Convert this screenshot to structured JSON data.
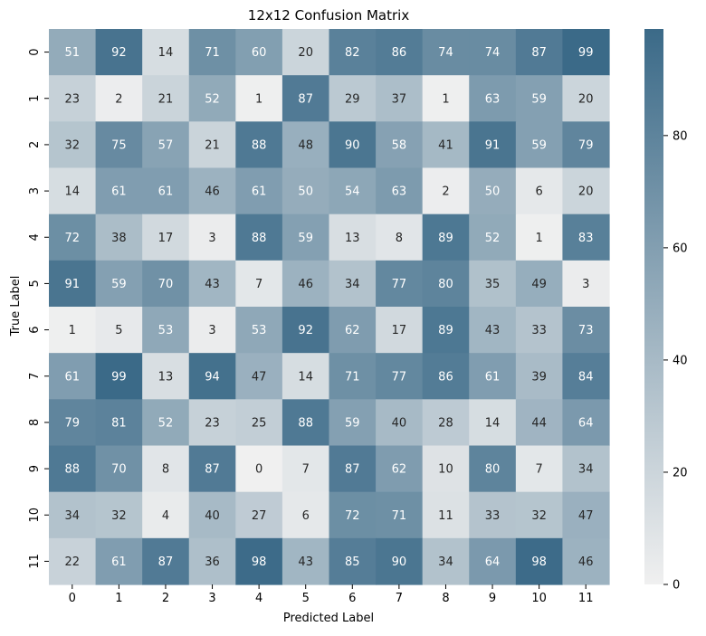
{
  "chart_data": {
    "type": "heatmap",
    "title": "12x12 Confusion Matrix",
    "xlabel": "Predicted Label",
    "ylabel": "True Label",
    "x_categories": [
      "0",
      "1",
      "2",
      "3",
      "4",
      "5",
      "6",
      "7",
      "8",
      "9",
      "10",
      "11"
    ],
    "y_categories": [
      "0",
      "1",
      "2",
      "3",
      "4",
      "5",
      "6",
      "7",
      "8",
      "9",
      "10",
      "11"
    ],
    "values": [
      [
        51,
        92,
        14,
        71,
        60,
        20,
        82,
        86,
        74,
        74,
        87,
        99
      ],
      [
        23,
        2,
        21,
        52,
        1,
        87,
        29,
        37,
        1,
        63,
        59,
        20
      ],
      [
        32,
        75,
        57,
        21,
        88,
        48,
        90,
        58,
        41,
        91,
        59,
        79
      ],
      [
        14,
        61,
        61,
        46,
        61,
        50,
        54,
        63,
        2,
        50,
        6,
        20
      ],
      [
        72,
        38,
        17,
        3,
        88,
        59,
        13,
        8,
        89,
        52,
        1,
        83
      ],
      [
        91,
        59,
        70,
        43,
        7,
        46,
        34,
        77,
        80,
        35,
        49,
        3
      ],
      [
        1,
        5,
        53,
        3,
        53,
        92,
        62,
        17,
        89,
        43,
        33,
        73
      ],
      [
        61,
        99,
        13,
        94,
        47,
        14,
        71,
        77,
        86,
        61,
        39,
        84
      ],
      [
        79,
        81,
        52,
        23,
        25,
        88,
        59,
        40,
        28,
        14,
        44,
        64
      ],
      [
        88,
        70,
        8,
        87,
        0,
        7,
        87,
        62,
        10,
        80,
        7,
        34
      ],
      [
        34,
        32,
        4,
        40,
        27,
        6,
        72,
        71,
        11,
        33,
        32,
        47
      ],
      [
        22,
        61,
        87,
        36,
        98,
        43,
        85,
        90,
        34,
        64,
        98,
        46
      ]
    ],
    "colorbar": {
      "range": [
        0,
        99
      ],
      "ticks": [
        0,
        20,
        40,
        60,
        80
      ],
      "low_color": "#f0f0f0",
      "high_color": "#3b6a88"
    },
    "annotations": true,
    "grid": false
  }
}
